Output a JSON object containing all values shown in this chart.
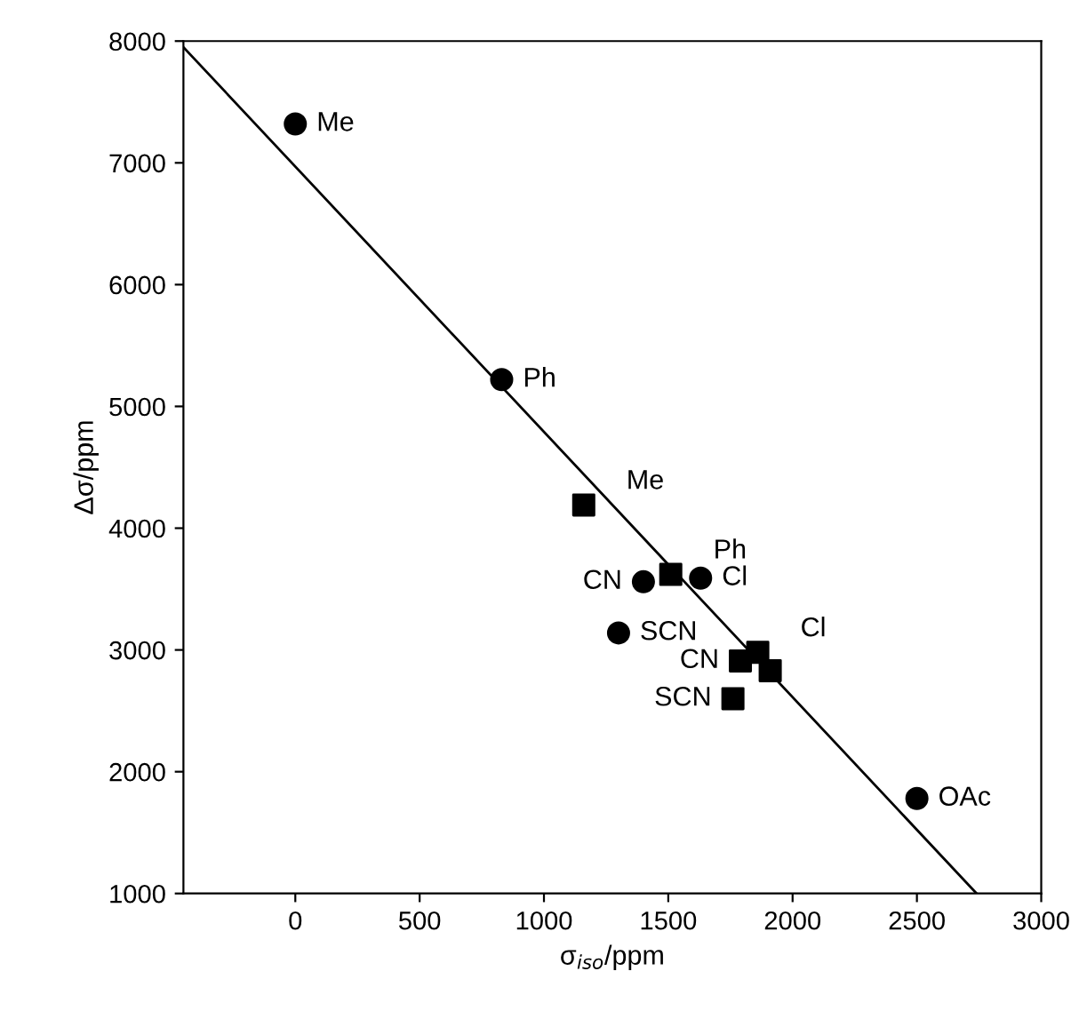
{
  "chart_data": {
    "type": "scatter",
    "xlabel": "σ$_{iso}$/ppm",
    "ylabel": "Δσ/ppm",
    "xlim": [
      -450,
      3000
    ],
    "xticks": [
      0,
      500,
      1000,
      1500,
      2000,
      2500,
      3000
    ],
    "ylim": [
      1000,
      8000
    ],
    "yticks": [
      1000,
      2000,
      3000,
      4000,
      5000,
      6000,
      7000,
      8000
    ],
    "grid": false,
    "legend": false,
    "series": [
      {
        "marker": "circle",
        "color": "#000000",
        "x": [
          0,
          830,
          1400,
          1630,
          1300,
          2500
        ],
        "values": [
          7320,
          5220,
          3560,
          3590,
          3140,
          1780
        ]
      },
      {
        "marker": "square",
        "color": "#000000",
        "x": [
          1160,
          1510,
          1790,
          1860,
          1910,
          1760
        ],
        "values": [
          4190,
          3620,
          2910,
          2980,
          2830,
          2600
        ]
      },
      {
        "type": "line",
        "marker": "none",
        "line_style": "solid",
        "color": "#000000",
        "x": [
          -450,
          2740
        ],
        "values": [
          7950,
          1000
        ]
      }
    ],
    "annotations": [
      {
        "text": "Me",
        "x": 0,
        "y": 7320
      },
      {
        "text": "Ph",
        "x": 830,
        "y": 5220
      },
      {
        "text": "Me",
        "x": 1160,
        "y": 4190
      },
      {
        "text": "Ph",
        "x": 1510,
        "y": 3620
      },
      {
        "text": "CN",
        "x": 1400,
        "y": 3560
      },
      {
        "text": "Cl",
        "x": 1630,
        "y": 3590
      },
      {
        "text": "SCN",
        "x": 1300,
        "y": 3140
      },
      {
        "text": "Cl",
        "x": 1860,
        "y": 2980
      },
      {
        "text": "CN",
        "x": 1790,
        "y": 2910
      },
      {
        "text": "SCN",
        "x": 1760,
        "y": 2600
      },
      {
        "text": "OAc",
        "x": 2500,
        "y": 1780
      }
    ]
  }
}
